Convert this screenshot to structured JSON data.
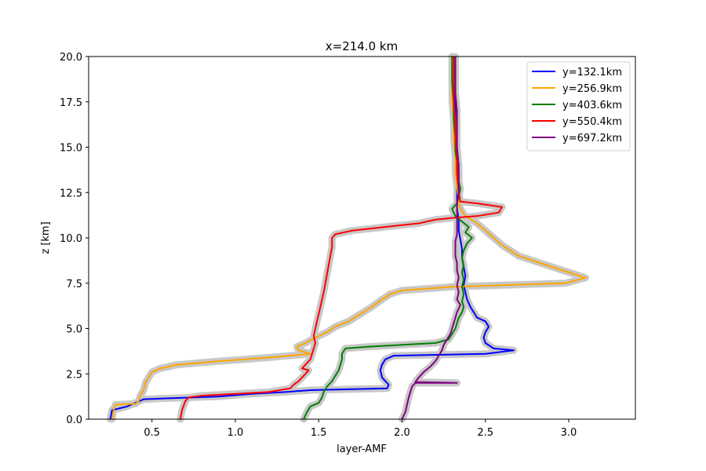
{
  "chart_data": {
    "type": "line",
    "title": "x=214.0 km",
    "xlabel": "layer-AMF",
    "ylabel": "z [km]",
    "xlim": [
      0.12,
      3.4
    ],
    "ylim": [
      0,
      20
    ],
    "xticks": [
      "0.5",
      "1.0",
      "1.5",
      "2.0",
      "2.5",
      "3.0"
    ],
    "yticks": [
      "0.0",
      "2.5",
      "5.0",
      "7.5",
      "10.0",
      "12.5",
      "15.0",
      "17.5",
      "20.0"
    ],
    "legend_position": "top-right",
    "uncertainty_band_color": "#c8c8c8",
    "series": [
      {
        "name": "y=132.1km",
        "color": "#0000ff",
        "points": [
          [
            0.25,
            0
          ],
          [
            0.26,
            0.5
          ],
          [
            0.35,
            0.7
          ],
          [
            0.4,
            0.9
          ],
          [
            0.45,
            1.1
          ],
          [
            0.6,
            1.15
          ],
          [
            0.9,
            1.25
          ],
          [
            1.1,
            1.4
          ],
          [
            1.3,
            1.5
          ],
          [
            1.45,
            1.6
          ],
          [
            1.91,
            1.7
          ],
          [
            1.92,
            1.9
          ],
          [
            1.88,
            2.3
          ],
          [
            1.87,
            2.7
          ],
          [
            1.88,
            3.0
          ],
          [
            1.9,
            3.3
          ],
          [
            1.95,
            3.5
          ],
          [
            2.5,
            3.6
          ],
          [
            2.67,
            3.8
          ],
          [
            2.55,
            3.9
          ],
          [
            2.5,
            4.2
          ],
          [
            2.49,
            4.5
          ],
          [
            2.5,
            4.8
          ],
          [
            2.52,
            5.1
          ],
          [
            2.5,
            5.4
          ],
          [
            2.45,
            5.6
          ],
          [
            2.43,
            5.9
          ],
          [
            2.41,
            6.2
          ],
          [
            2.39,
            6.6
          ],
          [
            2.38,
            7.0
          ],
          [
            2.37,
            7.4
          ],
          [
            2.38,
            7.9
          ],
          [
            2.37,
            8.4
          ],
          [
            2.36,
            8.9
          ],
          [
            2.36,
            9.4
          ],
          [
            2.35,
            9.9
          ],
          [
            2.34,
            10.4
          ],
          [
            2.34,
            11.0
          ],
          [
            2.33,
            11.6
          ],
          [
            2.33,
            12.2
          ],
          [
            2.33,
            12.8
          ],
          [
            2.33,
            13.6
          ],
          [
            2.33,
            14.4
          ],
          [
            2.32,
            15.2
          ],
          [
            2.32,
            16.2
          ],
          [
            2.32,
            17.2
          ],
          [
            2.31,
            18.2
          ],
          [
            2.31,
            19.2
          ],
          [
            2.31,
            20
          ]
        ]
      },
      {
        "name": "y=256.9km",
        "color": "#ffa500",
        "points": [
          [
            0.26,
            0
          ],
          [
            0.27,
            0.5
          ],
          [
            0.28,
            0.8
          ],
          [
            0.4,
            0.85
          ],
          [
            0.42,
            1.0
          ],
          [
            0.43,
            1.3
          ],
          [
            0.45,
            1.6
          ],
          [
            0.46,
            2.0
          ],
          [
            0.48,
            2.3
          ],
          [
            0.5,
            2.6
          ],
          [
            0.55,
            2.8
          ],
          [
            0.65,
            3.0
          ],
          [
            0.9,
            3.2
          ],
          [
            1.2,
            3.4
          ],
          [
            1.45,
            3.6
          ],
          [
            1.38,
            3.8
          ],
          [
            1.37,
            4.0
          ],
          [
            1.42,
            4.2
          ],
          [
            1.48,
            4.5
          ],
          [
            1.55,
            4.8
          ],
          [
            1.6,
            5.1
          ],
          [
            1.68,
            5.4
          ],
          [
            1.75,
            5.8
          ],
          [
            1.82,
            6.2
          ],
          [
            1.88,
            6.6
          ],
          [
            1.93,
            6.9
          ],
          [
            2.0,
            7.1
          ],
          [
            2.3,
            7.3
          ],
          [
            2.98,
            7.5
          ],
          [
            3.1,
            7.8
          ],
          [
            3.0,
            8.1
          ],
          [
            2.9,
            8.4
          ],
          [
            2.8,
            8.7
          ],
          [
            2.7,
            9.0
          ],
          [
            2.65,
            9.3
          ],
          [
            2.6,
            9.6
          ],
          [
            2.55,
            10.0
          ],
          [
            2.5,
            10.4
          ],
          [
            2.45,
            10.8
          ],
          [
            2.38,
            11.2
          ],
          [
            2.35,
            11.6
          ],
          [
            2.34,
            12.0
          ],
          [
            2.33,
            12.8
          ],
          [
            2.32,
            13.6
          ],
          [
            2.32,
            14.5
          ],
          [
            2.31,
            15.5
          ],
          [
            2.31,
            16.5
          ],
          [
            2.3,
            17.5
          ],
          [
            2.3,
            18.5
          ],
          [
            2.3,
            19.3
          ],
          [
            2.3,
            20
          ]
        ]
      },
      {
        "name": "y=403.6km",
        "color": "#008000",
        "points": [
          [
            1.41,
            0
          ],
          [
            1.43,
            0.4
          ],
          [
            1.45,
            0.7
          ],
          [
            1.5,
            0.9
          ],
          [
            1.52,
            1.2
          ],
          [
            1.53,
            1.5
          ],
          [
            1.55,
            1.8
          ],
          [
            1.58,
            2.1
          ],
          [
            1.6,
            2.4
          ],
          [
            1.62,
            2.7
          ],
          [
            1.63,
            3.0
          ],
          [
            1.64,
            3.3
          ],
          [
            1.64,
            3.6
          ],
          [
            1.66,
            3.9
          ],
          [
            1.8,
            4.0
          ],
          [
            2.2,
            4.2
          ],
          [
            2.28,
            4.4
          ],
          [
            2.3,
            4.7
          ],
          [
            2.32,
            5.0
          ],
          [
            2.33,
            5.3
          ],
          [
            2.34,
            5.6
          ],
          [
            2.36,
            5.9
          ],
          [
            2.37,
            6.2
          ],
          [
            2.36,
            6.5
          ],
          [
            2.37,
            6.9
          ],
          [
            2.36,
            7.3
          ],
          [
            2.37,
            7.7
          ],
          [
            2.36,
            8.1
          ],
          [
            2.37,
            8.5
          ],
          [
            2.36,
            8.9
          ],
          [
            2.37,
            9.3
          ],
          [
            2.39,
            9.7
          ],
          [
            2.42,
            10.0
          ],
          [
            2.38,
            10.3
          ],
          [
            2.4,
            10.6
          ],
          [
            2.36,
            10.9
          ],
          [
            2.32,
            11.2
          ],
          [
            2.3,
            11.6
          ],
          [
            2.33,
            11.9
          ],
          [
            2.34,
            12.3
          ],
          [
            2.35,
            12.7
          ],
          [
            2.34,
            13.1
          ],
          [
            2.34,
            13.6
          ],
          [
            2.33,
            14.2
          ],
          [
            2.32,
            14.8
          ],
          [
            2.32,
            15.5
          ],
          [
            2.31,
            16.5
          ],
          [
            2.31,
            17.5
          ],
          [
            2.3,
            18.5
          ],
          [
            2.3,
            19.3
          ],
          [
            2.3,
            20
          ]
        ]
      },
      {
        "name": "y=550.4km",
        "color": "#ff0000",
        "points": [
          [
            0.67,
            0
          ],
          [
            0.68,
            0.5
          ],
          [
            0.7,
            1.0
          ],
          [
            0.72,
            1.2
          ],
          [
            0.8,
            1.3
          ],
          [
            1.0,
            1.4
          ],
          [
            1.2,
            1.5
          ],
          [
            1.33,
            1.7
          ],
          [
            1.35,
            1.9
          ],
          [
            1.38,
            2.1
          ],
          [
            1.4,
            2.3
          ],
          [
            1.42,
            2.5
          ],
          [
            1.44,
            2.7
          ],
          [
            1.4,
            2.8
          ],
          [
            1.42,
            3.0
          ],
          [
            1.45,
            3.3
          ],
          [
            1.46,
            3.6
          ],
          [
            1.47,
            3.9
          ],
          [
            1.48,
            4.2
          ],
          [
            1.47,
            4.6
          ],
          [
            1.48,
            5.0
          ],
          [
            1.49,
            5.4
          ],
          [
            1.5,
            5.8
          ],
          [
            1.51,
            6.2
          ],
          [
            1.52,
            6.6
          ],
          [
            1.53,
            7.0
          ],
          [
            1.54,
            7.5
          ],
          [
            1.55,
            8.0
          ],
          [
            1.56,
            8.5
          ],
          [
            1.57,
            9.0
          ],
          [
            1.58,
            9.5
          ],
          [
            1.58,
            10.0
          ],
          [
            1.6,
            10.2
          ],
          [
            1.7,
            10.4
          ],
          [
            1.9,
            10.6
          ],
          [
            2.1,
            10.8
          ],
          [
            2.2,
            11.0
          ],
          [
            2.3,
            11.1
          ],
          [
            2.45,
            11.2
          ],
          [
            2.58,
            11.4
          ],
          [
            2.6,
            11.7
          ],
          [
            2.45,
            11.9
          ],
          [
            2.35,
            12.0
          ],
          [
            2.34,
            12.5
          ],
          [
            2.33,
            13.5
          ],
          [
            2.33,
            14.5
          ],
          [
            2.32,
            15.5
          ],
          [
            2.32,
            16.5
          ],
          [
            2.31,
            17.5
          ],
          [
            2.31,
            18.5
          ],
          [
            2.31,
            19.3
          ],
          [
            2.31,
            20
          ]
        ]
      },
      {
        "name": "y=697.2km",
        "color": "#800080",
        "points": [
          [
            2.0,
            0
          ],
          [
            2.02,
            0.4
          ],
          [
            2.03,
            0.8
          ],
          [
            2.04,
            1.2
          ],
          [
            2.05,
            1.5
          ],
          [
            2.06,
            1.8
          ],
          [
            2.08,
            2.0
          ],
          [
            2.33,
            2.0
          ],
          [
            2.08,
            2.05
          ],
          [
            2.1,
            2.3
          ],
          [
            2.13,
            2.6
          ],
          [
            2.17,
            2.9
          ],
          [
            2.2,
            3.2
          ],
          [
            2.22,
            3.5
          ],
          [
            2.24,
            3.8
          ],
          [
            2.25,
            4.1
          ],
          [
            2.27,
            4.4
          ],
          [
            2.29,
            4.7
          ],
          [
            2.3,
            5.0
          ],
          [
            2.31,
            5.3
          ],
          [
            2.32,
            5.6
          ],
          [
            2.33,
            5.9
          ],
          [
            2.35,
            6.3
          ],
          [
            2.33,
            6.6
          ],
          [
            2.34,
            7.0
          ],
          [
            2.33,
            7.4
          ],
          [
            2.34,
            7.8
          ],
          [
            2.33,
            8.2
          ],
          [
            2.33,
            8.6
          ],
          [
            2.32,
            9.0
          ],
          [
            2.32,
            9.4
          ],
          [
            2.32,
            9.8
          ],
          [
            2.33,
            10.2
          ],
          [
            2.33,
            10.6
          ],
          [
            2.33,
            11.0
          ],
          [
            2.33,
            11.5
          ],
          [
            2.33,
            12.0
          ],
          [
            2.34,
            12.5
          ],
          [
            2.34,
            13.2
          ],
          [
            2.34,
            14.0
          ],
          [
            2.33,
            15.0
          ],
          [
            2.33,
            16.0
          ],
          [
            2.33,
            17.0
          ],
          [
            2.32,
            18.0
          ],
          [
            2.32,
            19.0
          ],
          [
            2.32,
            20
          ]
        ]
      }
    ]
  }
}
